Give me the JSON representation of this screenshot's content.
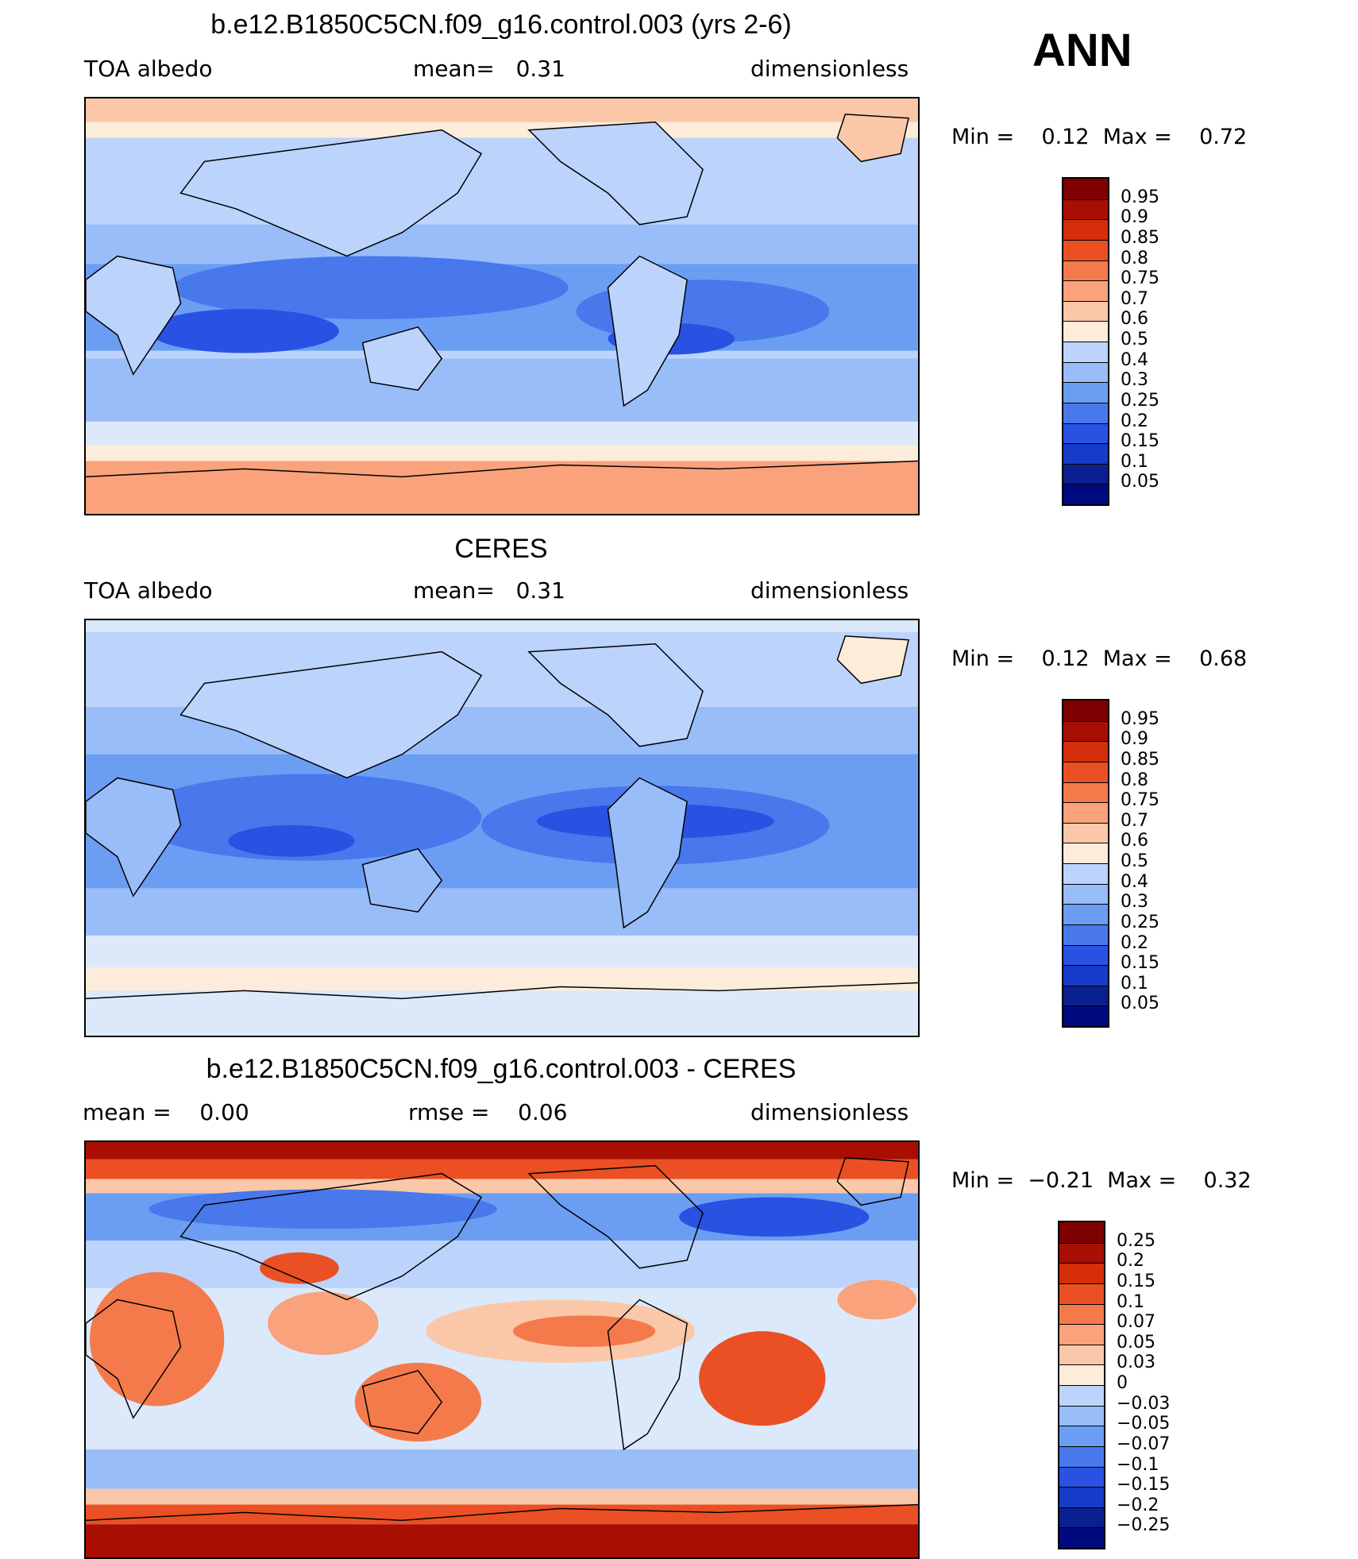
{
  "season": "ANN",
  "panels": [
    {
      "title": "b.e12.B1850C5CN.f09_g16.control.003 (yrs 2-6)",
      "left_label": "TOA albedo",
      "center_label": "mean=   0.31",
      "right_label": "dimensionless",
      "minmax": "Min =    0.12  Max =    0.72",
      "colorbar": [
        "0.95",
        "0.9",
        "0.85",
        "0.8",
        "0.75",
        "0.7",
        "0.6",
        "0.5",
        "0.4",
        "0.3",
        "0.25",
        "0.2",
        "0.15",
        "0.1",
        "0.05"
      ]
    },
    {
      "title": "CERES",
      "left_label": "TOA albedo",
      "center_label": "mean=   0.31",
      "right_label": "dimensionless",
      "minmax": "Min =    0.12  Max =    0.68",
      "colorbar": [
        "0.95",
        "0.9",
        "0.85",
        "0.8",
        "0.75",
        "0.7",
        "0.6",
        "0.5",
        "0.4",
        "0.3",
        "0.25",
        "0.2",
        "0.15",
        "0.1",
        "0.05"
      ]
    },
    {
      "title": "b.e12.B1850C5CN.f09_g16.control.003 - CERES",
      "left_label": "mean =    0.00",
      "center_label": "rmse =    0.06",
      "right_label": "dimensionless",
      "minmax": "Min =  −0.21  Max =    0.32",
      "colorbar": [
        "0.25",
        "0.2",
        "0.15",
        "0.1",
        "0.07",
        "0.05",
        "0.03",
        "0",
        "−0.03",
        "−0.05",
        "−0.07",
        "−0.1",
        "−0.15",
        "−0.2",
        "−0.25"
      ]
    }
  ],
  "colors": {
    "palette": [
      "#7f0000",
      "#a80f02",
      "#d42e0a",
      "#ea5023",
      "#f47a4c",
      "#f9a27c",
      "#fbc7a9",
      "#fdecd9",
      "#dbe9fb",
      "#bcd4fb",
      "#98bdf9",
      "#6b9ef3",
      "#4878ec",
      "#2952e3",
      "#153bc7",
      "#0a2090",
      "#000a80"
    ]
  }
}
